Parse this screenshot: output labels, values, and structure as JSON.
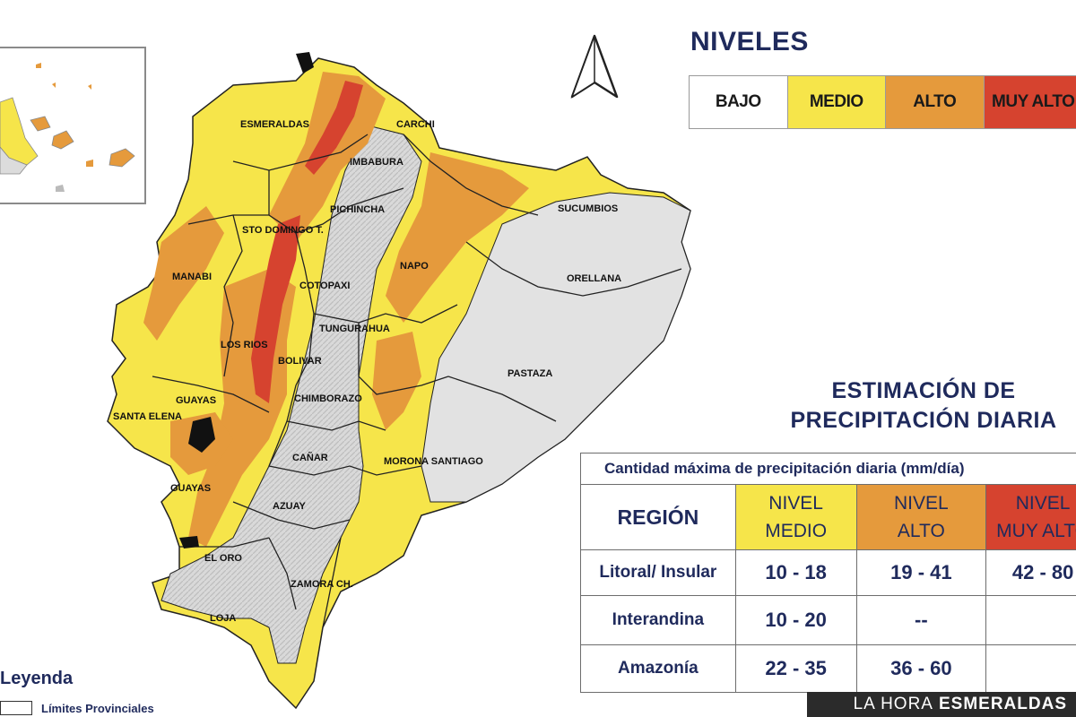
{
  "legend_levels": {
    "title": "NIVELES",
    "items": [
      {
        "label": "BAJO",
        "color": "#ffffff"
      },
      {
        "label": "MEDIO",
        "color": "#f6e54a"
      },
      {
        "label": "ALTO",
        "color": "#e59a3c"
      },
      {
        "label": "MUY ALTO",
        "color": "#d6432f"
      }
    ]
  },
  "provinces": [
    "ESMERALDAS",
    "CARCHI",
    "IMBABURA",
    "SUCUMBIOS",
    "PICHINCHA",
    "STO DOMINGO T.",
    "MANABI",
    "NAPO",
    "ORELLANA",
    "COTOPAXI",
    "LOS RIOS",
    "TUNGURAHUA",
    "BOLIVAR",
    "PASTAZA",
    "GUAYAS",
    "CHIMBORAZO",
    "SANTA ELENA",
    "CAÑAR",
    "MORONA SANTIAGO",
    "GUAYAS",
    "AZUAY",
    "EL ORO",
    "ZAMORA CH.",
    "LOJA"
  ],
  "estimation": {
    "title_line1": "ESTIMACIÓN DE",
    "title_line2": "PRECIPITACIÓN DIARIA",
    "caption": "Cantidad máxima de precipitación diaria (mm/día)",
    "header_region": "REGIÓN",
    "headers": [
      {
        "line1": "NIVEL",
        "line2": "MEDIO",
        "color": "#f6e54a"
      },
      {
        "line1": "NIVEL",
        "line2": "ALTO",
        "color": "#e59a3c"
      },
      {
        "line1": "NIVEL",
        "line2": "MUY ALTO",
        "color": "#d6432f"
      }
    ],
    "rows": [
      {
        "region": "Litoral/ Insular",
        "medio": "10 - 18",
        "alto": "19 - 41",
        "muy_alto": "42 - 80"
      },
      {
        "region": "Interandina",
        "medio": "10 - 20",
        "alto": "--",
        "muy_alto": ""
      },
      {
        "region": "Amazonía",
        "medio": "22 - 35",
        "alto": "36 - 60",
        "muy_alto": ""
      }
    ]
  },
  "map_legend": {
    "title": "Leyenda",
    "item": "Límites Provinciales"
  },
  "brand": {
    "part1": "LA HORA",
    "part2": "ESMERALDAS"
  },
  "colors": {
    "navy": "#1f2a5c",
    "bajo": "#e4e4e4",
    "medio": "#f6e54a",
    "alto": "#e59a3c",
    "muy_alto": "#d6432f"
  },
  "icons": {
    "north_arrow": "north-arrow-icon"
  }
}
